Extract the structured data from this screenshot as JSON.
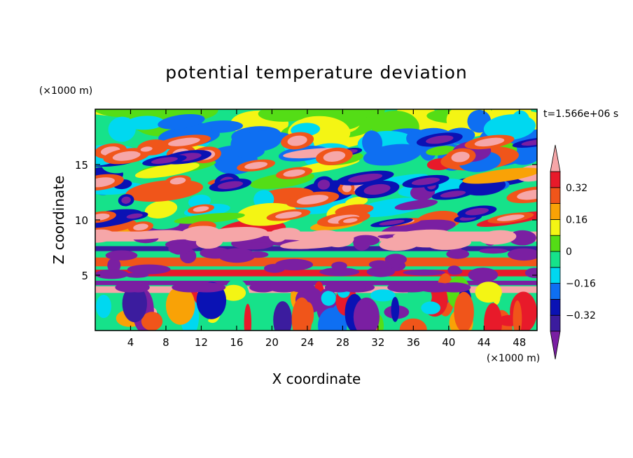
{
  "chart_data": {
    "type": "heatmap",
    "title": "potential temperature deviation",
    "xlabel": "X coordinate",
    "ylabel": "Z coordinate",
    "x_unit": "(×1000 m)",
    "z_unit": "(×1000 m)",
    "time_label": "t=1.566e+06 s",
    "xlim": [
      0,
      50
    ],
    "zlim": [
      0,
      20
    ],
    "x_ticks": [
      4,
      8,
      12,
      16,
      20,
      24,
      28,
      32,
      36,
      40,
      44,
      48
    ],
    "z_ticks": [
      5,
      10,
      15
    ],
    "colorbar": {
      "levels": [
        -0.4,
        -0.32,
        -0.24,
        -0.16,
        -0.08,
        0,
        0.08,
        0.16,
        0.24,
        0.32,
        0.4
      ],
      "labeled_ticks": [
        -0.32,
        -0.16,
        0,
        0.16,
        0.32
      ],
      "tick_labels": [
        "−0.32",
        "−0.16",
        "0",
        "0.16",
        "0.32"
      ],
      "extend": "both",
      "colors": [
        "#7a1fa2",
        "#3b1c9e",
        "#0a12b4",
        "#0e6ff2",
        "#00d8f0",
        "#16e28a",
        "#54dd16",
        "#f4f514",
        "#f9a206",
        "#f0551a",
        "#e81a2a",
        "#f6a6a8"
      ]
    },
    "bands": [
      {
        "z": 8.5,
        "dz": 0.9,
        "value": 0.45
      },
      {
        "z": 7.4,
        "dz": 0.45,
        "value": -0.4
      },
      {
        "z": 6.2,
        "dz": 0.8,
        "value": 0.3
      },
      {
        "z": 5.2,
        "dz": 0.6,
        "value": 0.38
      },
      {
        "z": 4.3,
        "dz": 0.4,
        "value": -0.42
      },
      {
        "z": 3.7,
        "dz": 0.6,
        "value": 0.45
      }
    ]
  }
}
